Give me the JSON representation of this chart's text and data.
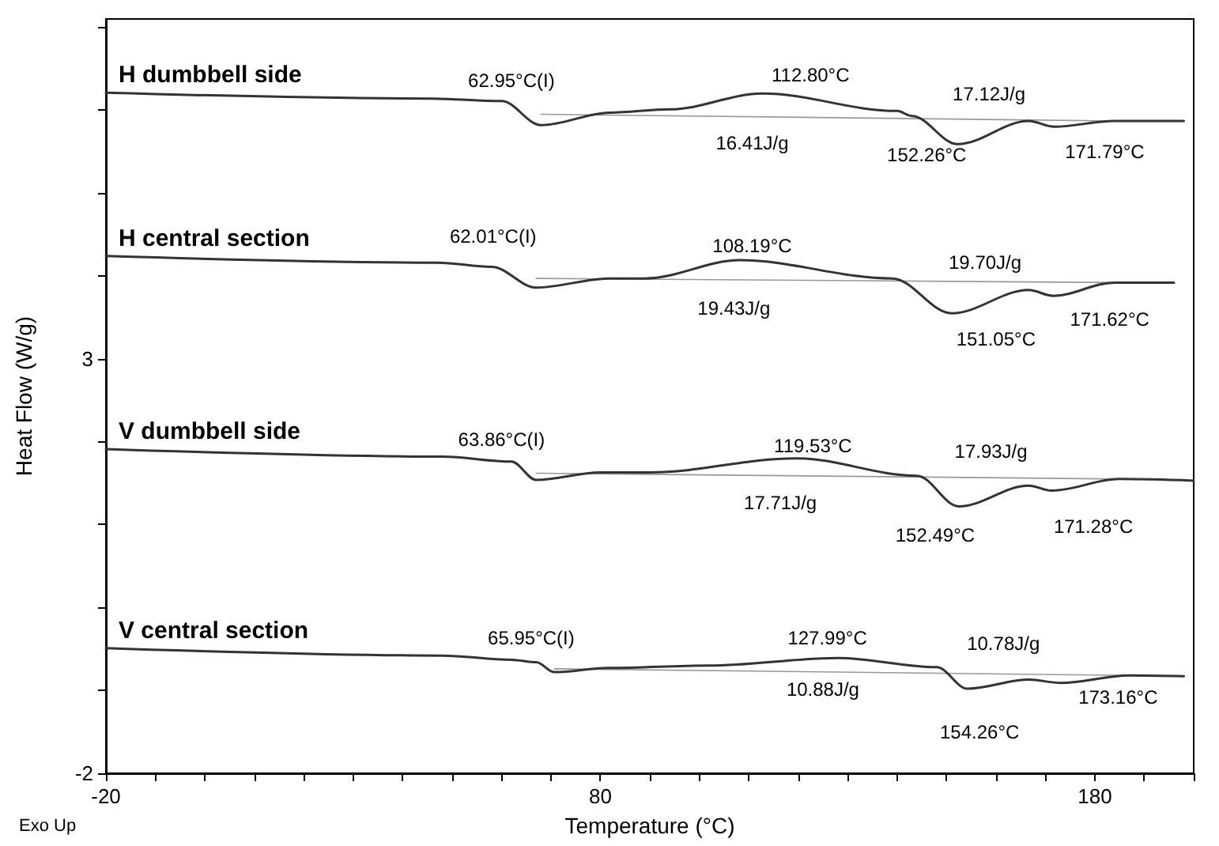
{
  "chart_data": {
    "type": "line",
    "xlabel": "Temperature (°C)",
    "ylabel": "Heat Flow (W/g)",
    "xlim": [
      -20,
      200
    ],
    "ylim": [
      -2,
      7.1
    ],
    "xticks": [
      -20,
      {
        "value": -10,
        "label": null
      },
      {
        "value": 0,
        "label": null
      },
      {
        "value": 10,
        "label": null
      },
      {
        "value": 20,
        "label": null
      },
      {
        "value": 30,
        "label": null
      },
      {
        "value": 40,
        "label": null
      },
      {
        "value": 50,
        "label": null
      },
      {
        "value": 60,
        "label": null
      },
      {
        "value": 70,
        "label": null
      },
      80,
      {
        "value": 90,
        "label": null
      },
      {
        "value": 100,
        "label": null
      },
      {
        "value": 110,
        "label": null
      },
      {
        "value": 120,
        "label": null
      },
      {
        "value": 130,
        "label": null
      },
      {
        "value": 140,
        "label": null
      },
      {
        "value": 150,
        "label": null
      },
      {
        "value": 160,
        "label": null
      },
      {
        "value": 170,
        "label": null
      },
      180,
      {
        "value": 190,
        "label": null
      },
      {
        "value": 200,
        "label": null
      }
    ],
    "yticks": [
      -2,
      {
        "value": -1,
        "label": null
      },
      {
        "value": 0,
        "label": null
      },
      {
        "value": 1,
        "label": null
      },
      {
        "value": 2,
        "label": null
      },
      3,
      {
        "value": 4,
        "label": null
      },
      {
        "value": 5,
        "label": null
      },
      {
        "value": 6,
        "label": null
      },
      {
        "value": 7,
        "label": null
      }
    ],
    "grid": false,
    "legend": false,
    "marker": "none",
    "line_style": "solid",
    "series": [
      {
        "name": "H dumbbell side",
        "color": "#333333",
        "x": [
          -20,
          46,
          60,
          68,
          82,
          94,
          112.8,
          140,
          143,
          152.26,
          166.6,
          171.79,
          184,
          198
        ],
        "values": [
          6.21,
          6.14,
          6.11,
          5.82,
          5.97,
          6.01,
          6.2,
          5.99,
          5.93,
          5.59,
          5.87,
          5.8,
          5.87,
          5.87
        ]
      },
      {
        "color": "#999999",
        "x": [
          68,
          184
        ],
        "values": [
          5.95,
          5.87
        ]
      },
      {
        "name": "H central section",
        "color": "#333333",
        "x": [
          -20,
          47,
          58,
          67,
          82,
          89,
          108.19,
          139,
          151.05,
          166.6,
          171.62,
          184,
          196
        ],
        "values": [
          4.24,
          4.16,
          4.11,
          3.86,
          3.97,
          3.97,
          4.19,
          3.97,
          3.55,
          3.83,
          3.76,
          3.92,
          3.92
        ]
      },
      {
        "color": "#999999",
        "x": [
          67,
          184
        ],
        "values": [
          3.97,
          3.92
        ]
      },
      {
        "name": "V dumbbell side",
        "color": "#333333",
        "x": [
          -20,
          48,
          62,
          67,
          80,
          90,
          119.53,
          144,
          152.49,
          166.6,
          171.28,
          185,
          200
        ],
        "values": [
          1.91,
          1.82,
          1.76,
          1.54,
          1.63,
          1.63,
          1.8,
          1.59,
          1.22,
          1.47,
          1.41,
          1.55,
          1.53
        ]
      },
      {
        "color": "#999999",
        "x": [
          67,
          185
        ],
        "values": [
          1.62,
          1.55
        ]
      },
      {
        "name": "V central section",
        "color": "#333333",
        "x": [
          -20,
          48,
          62,
          67,
          70.7,
          81.6,
          102,
          127.99,
          148,
          154.26,
          166.6,
          173.16,
          187,
          198
        ],
        "values": [
          -0.49,
          -0.58,
          -0.63,
          -0.66,
          -0.78,
          -0.73,
          -0.7,
          -0.61,
          -0.72,
          -0.98,
          -0.87,
          -0.91,
          -0.82,
          -0.83
        ]
      },
      {
        "color": "#999999",
        "x": [
          70.7,
          187
        ],
        "values": [
          -0.74,
          -0.82
        ]
      }
    ],
    "annotations": [
      "62.95°C(I)",
      "112.80°C",
      "17.12J/g",
      "16.41J/g",
      "152.26°C",
      "171.79°C",
      "62.01°C(I)",
      "108.19°C",
      "19.70J/g",
      "19.43J/g",
      "151.05°C",
      "171.62°C",
      "63.86°C(I)",
      "119.53°C",
      "17.93J/g",
      "17.71J/g",
      "152.49°C",
      "171.28°C",
      "65.95°C(I)",
      "127.99°C",
      "10.78J/g",
      "10.88J/g",
      "154.26°C",
      "173.16°C",
      "Exo Up"
    ]
  }
}
